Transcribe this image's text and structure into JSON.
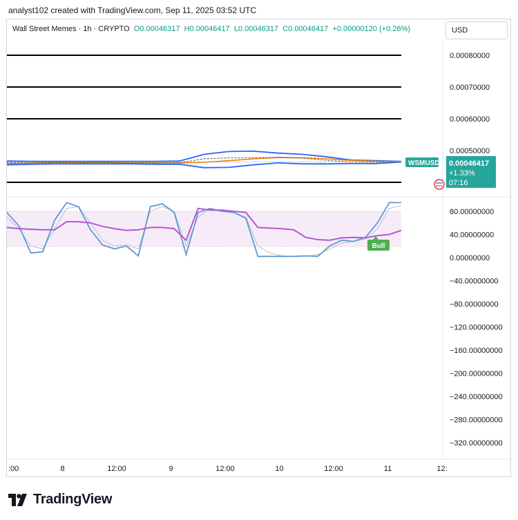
{
  "header": {
    "credit": "analyst102 created with TradingView.com, Sep 11, 2025 03:52 UTC"
  },
  "legend": {
    "symbol": "Wall Street Memes · 1h · CRYPTO",
    "open": "O0.00046317",
    "high": "H0.00046417",
    "low": "L0.00046317",
    "close": "C0.00046417",
    "change": "+0.00000120 (+0.26%)"
  },
  "currency": "USD",
  "price_tag": {
    "symbol": "WSMUSD",
    "price": "0.00046417",
    "change": "+1.33%",
    "countdown": "07:16"
  },
  "badge": {
    "label": "Bull"
  },
  "brand": {
    "name": "TradingView"
  },
  "colors": {
    "accent": "#26a69a",
    "band": "#2962ff",
    "ma": "#f57c00",
    "stoch_k": "#5b9bd5",
    "stoch_rsi": "#b455d8",
    "bull": "#4caf50"
  },
  "chart_data": [
    {
      "type": "line",
      "name": "price",
      "y_ticks": [
        "0.00080000",
        "0.00070000",
        "0.00060000",
        "0.00050000"
      ],
      "ylim": [
        0.0004,
        0.00082
      ],
      "horizontal_levels": [
        0.0008,
        0.0007,
        0.0006,
        0.0004
      ],
      "x_ticks": [
        ":00",
        "8",
        "12:00",
        "9",
        "12:00",
        "10",
        "12:00",
        "11",
        "12:"
      ],
      "price": [
        0.000462,
        0.000461,
        0.000462,
        0.000461,
        0.000462,
        0.000461,
        0.000461,
        0.000462,
        0.000474,
        0.000477,
        0.000477,
        0.000479,
        0.000476,
        0.000469,
        0.000464,
        0.000463,
        0.000464
      ],
      "upper_band": [
        0.000467,
        0.000466,
        0.000466,
        0.000466,
        0.000466,
        0.000466,
        0.000466,
        0.000467,
        0.000488,
        0.000497,
        0.000498,
        0.000492,
        0.000488,
        0.00048,
        0.00047,
        0.000468,
        0.000466
      ],
      "lower_band": [
        0.000455,
        0.000457,
        0.000458,
        0.000458,
        0.000458,
        0.000458,
        0.000457,
        0.000457,
        0.000446,
        0.000447,
        0.000455,
        0.000461,
        0.000458,
        0.000458,
        0.000459,
        0.000459,
        0.000464
      ],
      "moving_average": [
        0.000459,
        0.000461,
        0.000462,
        0.000462,
        0.000462,
        0.000461,
        0.000461,
        0.000461,
        0.000463,
        0.000468,
        0.000474,
        0.000478,
        0.000477,
        0.000474,
        0.000469,
        0.000466,
        0.000465
      ]
    },
    {
      "type": "line",
      "name": "oscillator",
      "y_ticks": [
        "80.00000000",
        "40.00000000",
        "0.00000000",
        "−40.00000000",
        "−80.00000000",
        "−120.00000000",
        "−160.00000000",
        "−200.00000000",
        "−240.00000000",
        "−280.00000000",
        "−320.00000000"
      ],
      "ylim": [
        -335,
        100
      ],
      "band": [
        20,
        80
      ],
      "x_ticks": [
        ":00",
        "8",
        "12:00",
        "9",
        "12:00",
        "10",
        "12:00",
        "11",
        "12:"
      ],
      "stoch_k": [
        78,
        55,
        8,
        10,
        65,
        95,
        88,
        48,
        22,
        15,
        20,
        3,
        88,
        93,
        78,
        5,
        78,
        85,
        80,
        78,
        68,
        2,
        2,
        2,
        2,
        3,
        2,
        20,
        30,
        28,
        35,
        60,
        95,
        95
      ],
      "stoch_d": [
        70,
        50,
        20,
        15,
        50,
        85,
        88,
        60,
        30,
        20,
        22,
        15,
        80,
        88,
        80,
        20,
        70,
        84,
        82,
        78,
        70,
        20,
        8,
        3,
        2,
        2,
        5,
        15,
        25,
        28,
        32,
        50,
        85,
        90
      ],
      "rsi": [
        52,
        50,
        49,
        48,
        48,
        62,
        62,
        60,
        54,
        50,
        47,
        48,
        52,
        52,
        50,
        30,
        85,
        82,
        82,
        80,
        78,
        52,
        51,
        50,
        48,
        35,
        31,
        30,
        34,
        35,
        34,
        38,
        40,
        47
      ]
    }
  ]
}
